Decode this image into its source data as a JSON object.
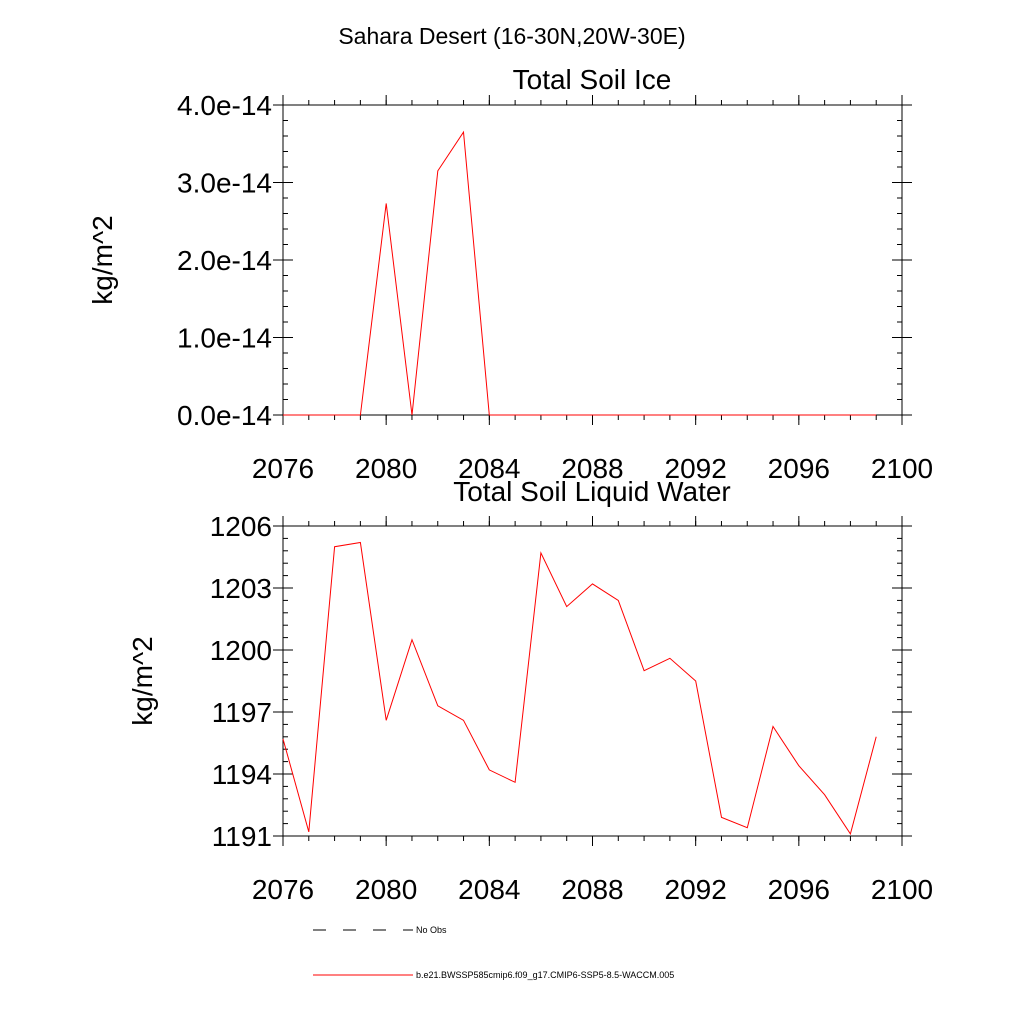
{
  "page_title": "Sahara Desert (16-30N,20W-30E)",
  "colors": {
    "series": "#ff0000",
    "axes": "#000000",
    "obs": "#000000"
  },
  "legend": {
    "obs_label": "No Obs",
    "model_label": "b.e21.BWSSP585cmip6.f09_g17.CMIP6-SSP5-8.5-WACCM.005"
  },
  "chart_data": [
    {
      "type": "line",
      "title": "Total Soil Ice",
      "xlabel": "",
      "ylabel": "kg/m^2",
      "xlim": [
        2076,
        2100
      ],
      "ylim": [
        0,
        4e-14
      ],
      "x_ticks": [
        2076,
        2080,
        2084,
        2088,
        2092,
        2096,
        2100
      ],
      "x_tick_labels": [
        "2076",
        "2080",
        "2084",
        "2088",
        "2092",
        "2096",
        "2100"
      ],
      "x_minor_step": 1,
      "y_ticks": [
        0,
        1e-14,
        2e-14,
        3e-14,
        4e-14
      ],
      "y_tick_labels": [
        "0.0e-14",
        "1.0e-14",
        "2.0e-14",
        "3.0e-14",
        "4.0e-14"
      ],
      "y_minor_step": 2e-15,
      "series": [
        {
          "name": "b.e21.BWSSP585cmip6.f09_g17.CMIP6-SSP5-8.5-WACCM.005",
          "x": [
            2076,
            2077,
            2078,
            2079,
            2080,
            2081,
            2082,
            2083,
            2084,
            2085,
            2086,
            2087,
            2088,
            2089,
            2090,
            2091,
            2092,
            2093,
            2094,
            2095,
            2096,
            2097,
            2098,
            2099
          ],
          "values": [
            0,
            0,
            0,
            0,
            2.73e-14,
            0,
            3.15e-14,
            3.65e-14,
            0,
            0,
            0,
            0,
            0,
            0,
            0,
            0,
            0,
            0,
            0,
            0,
            0,
            0,
            0,
            0
          ]
        }
      ]
    },
    {
      "type": "line",
      "title": "Total Soil Liquid Water",
      "xlabel": "",
      "ylabel": "kg/m^2",
      "xlim": [
        2076,
        2100
      ],
      "ylim": [
        1191,
        1206
      ],
      "x_ticks": [
        2076,
        2080,
        2084,
        2088,
        2092,
        2096,
        2100
      ],
      "x_tick_labels": [
        "2076",
        "2080",
        "2084",
        "2088",
        "2092",
        "2096",
        "2100"
      ],
      "x_minor_step": 1,
      "y_ticks": [
        1191,
        1194,
        1197,
        1200,
        1203,
        1206
      ],
      "y_tick_labels": [
        "1191",
        "1194",
        "1197",
        "1200",
        "1203",
        "1206"
      ],
      "y_minor_step": 0.6,
      "series": [
        {
          "name": "b.e21.BWSSP585cmip6.f09_g17.CMIP6-SSP5-8.5-WACCM.005",
          "x": [
            2076,
            2077,
            2078,
            2079,
            2080,
            2081,
            2082,
            2083,
            2084,
            2085,
            2086,
            2087,
            2088,
            2089,
            2090,
            2091,
            2092,
            2093,
            2094,
            2095,
            2096,
            2097,
            2098,
            2099
          ],
          "values": [
            1195.7,
            1191.2,
            1205.0,
            1205.2,
            1196.6,
            1200.5,
            1197.3,
            1196.6,
            1194.2,
            1193.6,
            1204.7,
            1202.1,
            1203.2,
            1202.4,
            1199.0,
            1199.6,
            1198.5,
            1191.9,
            1191.4,
            1196.3,
            1194.4,
            1193.0,
            1191.1,
            1195.8
          ]
        }
      ]
    }
  ]
}
